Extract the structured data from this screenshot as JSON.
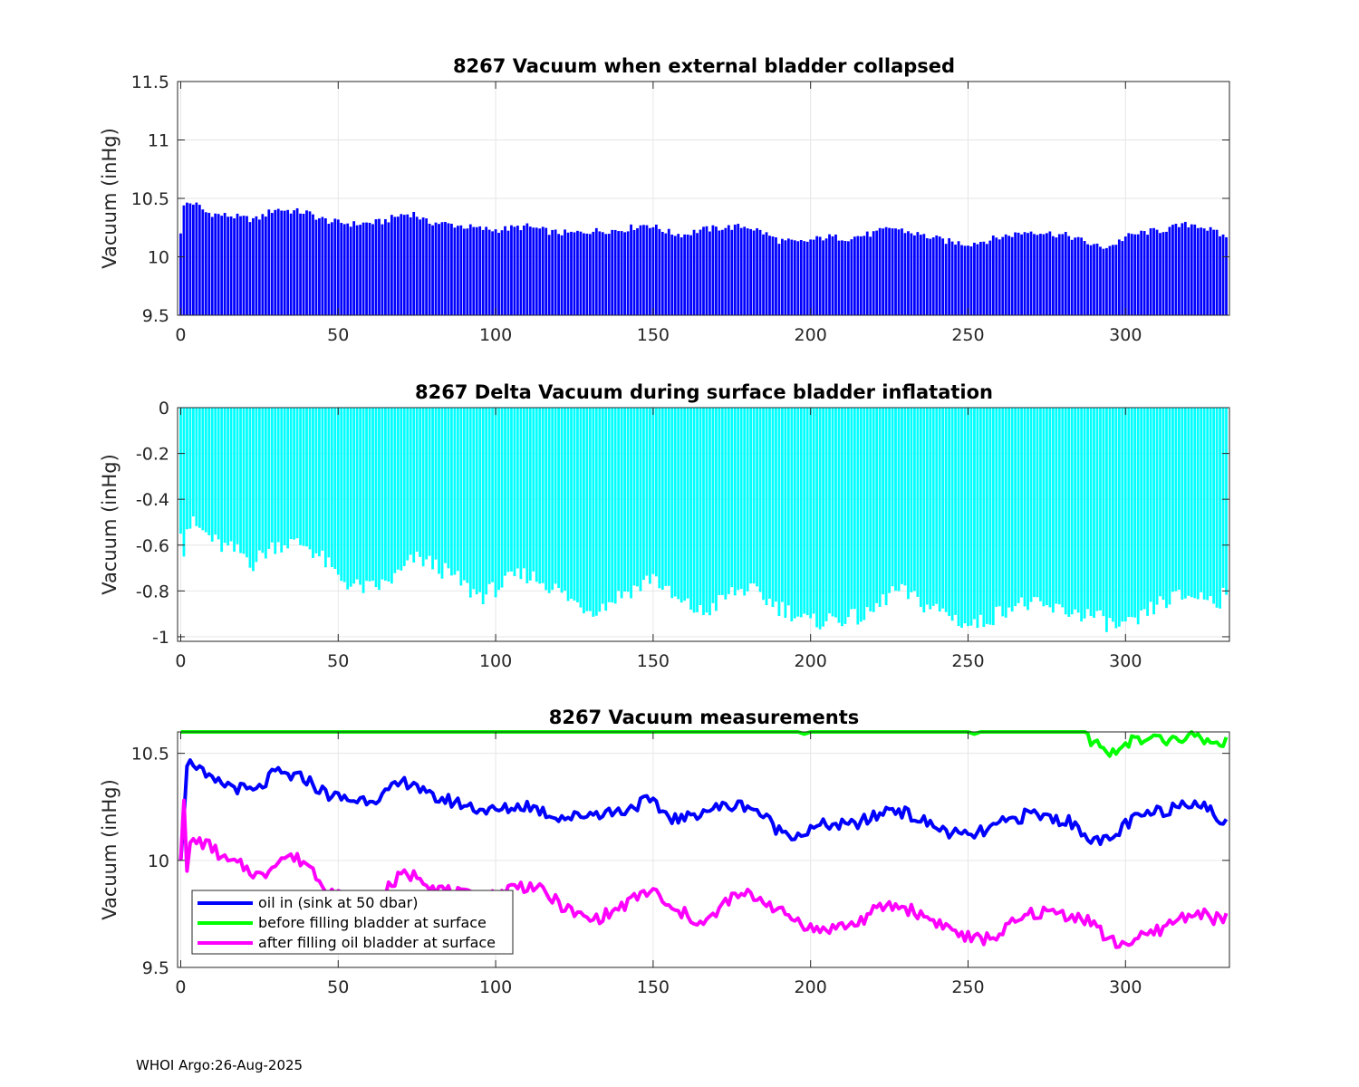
{
  "footer": "WHOI Argo:26-Aug-2025",
  "chart_data": [
    {
      "type": "bar",
      "title": "8267 Vacuum when external bladder collapsed",
      "xlabel": "",
      "ylabel": "Vacuum (inHg)",
      "xlim": [
        -1,
        333
      ],
      "ylim": [
        9.5,
        11.5
      ],
      "x_ticks": [
        0,
        50,
        100,
        150,
        200,
        250,
        300
      ],
      "y_ticks": [
        9.5,
        10,
        10.5,
        11,
        11.5
      ],
      "y_tick_labels": [
        "9.5",
        "10",
        "10.5",
        "11",
        "11.5"
      ],
      "bar_color": "#0000ff",
      "grid": true,
      "anchors": [
        [
          0,
          10.2
        ],
        [
          1,
          10.44
        ],
        [
          2,
          10.46
        ],
        [
          4,
          10.46
        ],
        [
          6,
          10.43
        ],
        [
          8,
          10.38
        ],
        [
          12,
          10.36
        ],
        [
          16,
          10.35
        ],
        [
          20,
          10.33
        ],
        [
          24,
          10.32
        ],
        [
          28,
          10.38
        ],
        [
          30,
          10.41
        ],
        [
          36,
          10.39
        ],
        [
          40,
          10.38
        ],
        [
          44,
          10.33
        ],
        [
          48,
          10.3
        ],
        [
          55,
          10.28
        ],
        [
          60,
          10.29
        ],
        [
          64,
          10.3
        ],
        [
          70,
          10.36
        ],
        [
          74,
          10.37
        ],
        [
          78,
          10.3
        ],
        [
          85,
          10.28
        ],
        [
          90,
          10.26
        ],
        [
          95,
          10.24
        ],
        [
          100,
          10.23
        ],
        [
          110,
          10.26
        ],
        [
          118,
          10.21
        ],
        [
          124,
          10.2
        ],
        [
          130,
          10.22
        ],
        [
          140,
          10.23
        ],
        [
          148,
          10.28
        ],
        [
          150,
          10.26
        ],
        [
          156,
          10.2
        ],
        [
          160,
          10.19
        ],
        [
          165,
          10.23
        ],
        [
          172,
          10.25
        ],
        [
          180,
          10.26
        ],
        [
          184,
          10.22
        ],
        [
          190,
          10.14
        ],
        [
          196,
          10.12
        ],
        [
          200,
          10.14
        ],
        [
          205,
          10.17
        ],
        [
          212,
          10.16
        ],
        [
          220,
          10.2
        ],
        [
          226,
          10.25
        ],
        [
          230,
          10.22
        ],
        [
          236,
          10.18
        ],
        [
          244,
          10.13
        ],
        [
          250,
          10.11
        ],
        [
          256,
          10.14
        ],
        [
          262,
          10.18
        ],
        [
          270,
          10.22
        ],
        [
          276,
          10.2
        ],
        [
          282,
          10.18
        ],
        [
          288,
          10.12
        ],
        [
          292,
          10.08
        ],
        [
          296,
          10.1
        ],
        [
          300,
          10.17
        ],
        [
          306,
          10.21
        ],
        [
          312,
          10.23
        ],
        [
          318,
          10.27
        ],
        [
          322,
          10.28
        ],
        [
          326,
          10.24
        ],
        [
          330,
          10.19
        ],
        [
          332,
          10.17
        ]
      ]
    },
    {
      "type": "bar",
      "title": "8267 Delta Vacuum during surface bladder inflatation",
      "xlabel": "",
      "ylabel": "Vacuum (inHg)",
      "xlim": [
        -1,
        333
      ],
      "ylim": [
        -1.02,
        0
      ],
      "x_ticks": [
        0,
        50,
        100,
        150,
        200,
        250,
        300
      ],
      "y_ticks": [
        -1,
        -0.8,
        -0.6,
        -0.4,
        -0.2,
        0
      ],
      "y_tick_labels": [
        "-1",
        "-0.8",
        "-0.6",
        "-0.4",
        "-0.2",
        "0"
      ],
      "bar_color": "#00ffff",
      "grid": true,
      "anchors": [
        [
          0,
          -0.55
        ],
        [
          1,
          -0.65
        ],
        [
          2,
          -0.52
        ],
        [
          4,
          -0.51
        ],
        [
          8,
          -0.55
        ],
        [
          12,
          -0.6
        ],
        [
          16,
          -0.62
        ],
        [
          20,
          -0.64
        ],
        [
          23,
          -0.68
        ],
        [
          26,
          -0.64
        ],
        [
          30,
          -0.6
        ],
        [
          34,
          -0.59
        ],
        [
          40,
          -0.6
        ],
        [
          45,
          -0.66
        ],
        [
          50,
          -0.74
        ],
        [
          55,
          -0.78
        ],
        [
          60,
          -0.79
        ],
        [
          65,
          -0.77
        ],
        [
          70,
          -0.72
        ],
        [
          74,
          -0.66
        ],
        [
          78,
          -0.67
        ],
        [
          82,
          -0.7
        ],
        [
          88,
          -0.75
        ],
        [
          92,
          -0.8
        ],
        [
          96,
          -0.82
        ],
        [
          100,
          -0.79
        ],
        [
          106,
          -0.74
        ],
        [
          110,
          -0.73
        ],
        [
          115,
          -0.76
        ],
        [
          120,
          -0.8
        ],
        [
          125,
          -0.85
        ],
        [
          130,
          -0.88
        ],
        [
          134,
          -0.87
        ],
        [
          138,
          -0.83
        ],
        [
          142,
          -0.8
        ],
        [
          146,
          -0.78
        ],
        [
          150,
          -0.73
        ],
        [
          154,
          -0.8
        ],
        [
          158,
          -0.85
        ],
        [
          162,
          -0.87
        ],
        [
          166,
          -0.9
        ],
        [
          170,
          -0.86
        ],
        [
          175,
          -0.81
        ],
        [
          180,
          -0.79
        ],
        [
          185,
          -0.83
        ],
        [
          190,
          -0.87
        ],
        [
          195,
          -0.9
        ],
        [
          200,
          -0.94
        ],
        [
          204,
          -0.93
        ],
        [
          208,
          -0.92
        ],
        [
          212,
          -0.92
        ],
        [
          218,
          -0.91
        ],
        [
          222,
          -0.86
        ],
        [
          226,
          -0.8
        ],
        [
          230,
          -0.81
        ],
        [
          236,
          -0.86
        ],
        [
          242,
          -0.89
        ],
        [
          246,
          -0.92
        ],
        [
          250,
          -0.95
        ],
        [
          254,
          -0.94
        ],
        [
          258,
          -0.91
        ],
        [
          264,
          -0.86
        ],
        [
          270,
          -0.86
        ],
        [
          276,
          -0.88
        ],
        [
          282,
          -0.89
        ],
        [
          286,
          -0.9
        ],
        [
          290,
          -0.91
        ],
        [
          294,
          -0.94
        ],
        [
          298,
          -0.96
        ],
        [
          302,
          -0.95
        ],
        [
          306,
          -0.91
        ],
        [
          310,
          -0.86
        ],
        [
          316,
          -0.83
        ],
        [
          322,
          -0.82
        ],
        [
          326,
          -0.83
        ],
        [
          330,
          -0.84
        ],
        [
          332,
          -0.78
        ]
      ]
    },
    {
      "type": "line",
      "title": "8267 Vacuum measurements",
      "xlabel": "",
      "ylabel": "Vacuum (inHg)",
      "xlim": [
        -1,
        333
      ],
      "ylim": [
        9.5,
        10.6
      ],
      "x_ticks": [
        0,
        50,
        100,
        150,
        200,
        250,
        300
      ],
      "y_ticks": [
        9.5,
        10,
        10.5
      ],
      "y_tick_labels": [
        "9.5",
        "10",
        "10.5"
      ],
      "grid": true,
      "legend_position": "bottom-left",
      "series": [
        {
          "name": "oil in (sink at 50 dbar)",
          "color": "#0000ff",
          "anchors": [
            [
              0,
              10.0
            ],
            [
              1,
              10.2
            ],
            [
              2,
              10.44
            ],
            [
              4,
              10.46
            ],
            [
              6,
              10.43
            ],
            [
              8,
              10.38
            ],
            [
              12,
              10.36
            ],
            [
              16,
              10.35
            ],
            [
              20,
              10.33
            ],
            [
              24,
              10.32
            ],
            [
              28,
              10.38
            ],
            [
              30,
              10.41
            ],
            [
              36,
              10.39
            ],
            [
              40,
              10.38
            ],
            [
              44,
              10.33
            ],
            [
              48,
              10.3
            ],
            [
              55,
              10.28
            ],
            [
              60,
              10.29
            ],
            [
              64,
              10.3
            ],
            [
              70,
              10.36
            ],
            [
              74,
              10.37
            ],
            [
              78,
              10.3
            ],
            [
              85,
              10.28
            ],
            [
              90,
              10.26
            ],
            [
              95,
              10.24
            ],
            [
              100,
              10.23
            ],
            [
              110,
              10.26
            ],
            [
              118,
              10.21
            ],
            [
              124,
              10.2
            ],
            [
              130,
              10.22
            ],
            [
              140,
              10.23
            ],
            [
              148,
              10.28
            ],
            [
              150,
              10.26
            ],
            [
              156,
              10.2
            ],
            [
              160,
              10.19
            ],
            [
              165,
              10.23
            ],
            [
              172,
              10.25
            ],
            [
              180,
              10.26
            ],
            [
              184,
              10.22
            ],
            [
              190,
              10.14
            ],
            [
              196,
              10.12
            ],
            [
              200,
              10.14
            ],
            [
              205,
              10.17
            ],
            [
              212,
              10.16
            ],
            [
              220,
              10.2
            ],
            [
              226,
              10.25
            ],
            [
              230,
              10.22
            ],
            [
              236,
              10.18
            ],
            [
              244,
              10.13
            ],
            [
              250,
              10.11
            ],
            [
              256,
              10.14
            ],
            [
              262,
              10.18
            ],
            [
              270,
              10.22
            ],
            [
              276,
              10.2
            ],
            [
              282,
              10.18
            ],
            [
              288,
              10.12
            ],
            [
              292,
              10.08
            ],
            [
              296,
              10.1
            ],
            [
              300,
              10.17
            ],
            [
              306,
              10.21
            ],
            [
              312,
              10.23
            ],
            [
              318,
              10.27
            ],
            [
              322,
              10.28
            ],
            [
              326,
              10.24
            ],
            [
              330,
              10.19
            ],
            [
              332,
              10.17
            ]
          ]
        },
        {
          "name": "before filling bladder at surface",
          "color": "#00ff00",
          "anchors": [
            [
              0,
              10.6
            ],
            [
              196,
              10.6
            ],
            [
              198,
              10.59
            ],
            [
              200,
              10.6
            ],
            [
              250,
              10.6
            ],
            [
              252,
              10.59
            ],
            [
              254,
              10.6
            ],
            [
              286,
              10.6
            ],
            [
              290,
              10.55
            ],
            [
              294,
              10.5
            ],
            [
              298,
              10.53
            ],
            [
              302,
              10.56
            ],
            [
              306,
              10.55
            ],
            [
              310,
              10.57
            ],
            [
              314,
              10.55
            ],
            [
              318,
              10.57
            ],
            [
              322,
              10.58
            ],
            [
              326,
              10.56
            ],
            [
              330,
              10.54
            ],
            [
              332,
              10.57
            ]
          ]
        },
        {
          "name": "after filling oil bladder at surface",
          "color": "#ff00ff",
          "anchors": [
            [
              0,
              10.0
            ],
            [
              1,
              10.28
            ],
            [
              2,
              9.95
            ],
            [
              3,
              10.08
            ],
            [
              6,
              10.09
            ],
            [
              10,
              10.06
            ],
            [
              14,
              10.0
            ],
            [
              20,
              9.97
            ],
            [
              26,
              9.92
            ],
            [
              30,
              10.0
            ],
            [
              34,
              10.02
            ],
            [
              40,
              9.99
            ],
            [
              46,
              9.88
            ],
            [
              50,
              9.84
            ],
            [
              56,
              9.81
            ],
            [
              62,
              9.8
            ],
            [
              66,
              9.87
            ],
            [
              70,
              9.93
            ],
            [
              76,
              9.93
            ],
            [
              80,
              9.88
            ],
            [
              86,
              9.85
            ],
            [
              92,
              9.83
            ],
            [
              96,
              9.81
            ],
            [
              100,
              9.84
            ],
            [
              106,
              9.88
            ],
            [
              112,
              9.88
            ],
            [
              118,
              9.82
            ],
            [
              124,
              9.76
            ],
            [
              130,
              9.72
            ],
            [
              136,
              9.75
            ],
            [
              142,
              9.8
            ],
            [
              146,
              9.84
            ],
            [
              150,
              9.86
            ],
            [
              156,
              9.76
            ],
            [
              160,
              9.75
            ],
            [
              166,
              9.7
            ],
            [
              170,
              9.75
            ],
            [
              174,
              9.82
            ],
            [
              180,
              9.84
            ],
            [
              186,
              9.81
            ],
            [
              190,
              9.76
            ],
            [
              196,
              9.72
            ],
            [
              202,
              9.67
            ],
            [
              208,
              9.69
            ],
            [
              214,
              9.7
            ],
            [
              220,
              9.76
            ],
            [
              224,
              9.79
            ],
            [
              230,
              9.78
            ],
            [
              236,
              9.74
            ],
            [
              242,
              9.7
            ],
            [
              248,
              9.65
            ],
            [
              252,
              9.63
            ],
            [
              258,
              9.64
            ],
            [
              264,
              9.7
            ],
            [
              270,
              9.75
            ],
            [
              276,
              9.76
            ],
            [
              284,
              9.74
            ],
            [
              290,
              9.71
            ],
            [
              294,
              9.63
            ],
            [
              298,
              9.61
            ],
            [
              304,
              9.63
            ],
            [
              310,
              9.67
            ],
            [
              316,
              9.72
            ],
            [
              322,
              9.76
            ],
            [
              326,
              9.74
            ],
            [
              330,
              9.72
            ],
            [
              332,
              9.74
            ]
          ]
        }
      ]
    }
  ]
}
